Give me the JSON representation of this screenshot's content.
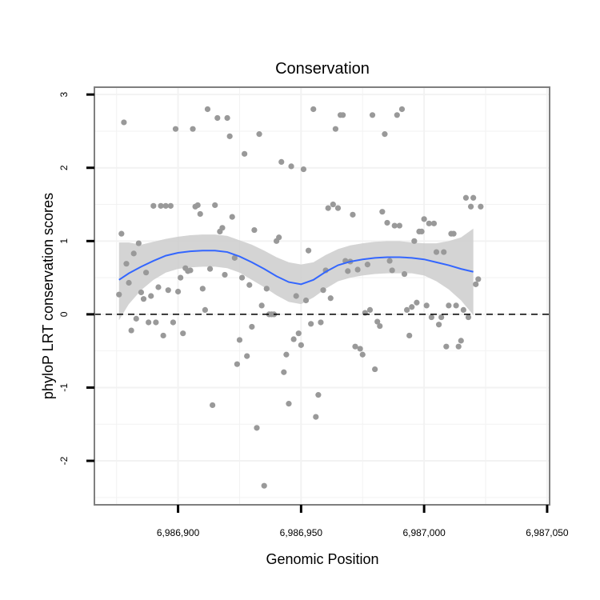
{
  "chart_data": {
    "type": "scatter",
    "title": "Conservation",
    "xlabel": "Genomic Position",
    "ylabel": "phyloP LRT conservation scores",
    "xlim": [
      6986866,
      6987051
    ],
    "ylim": [
      -2.6,
      3.1
    ],
    "x_ticks": [
      6986900,
      6986950,
      6987000,
      6987050
    ],
    "x_tick_labels": [
      "6,986,900",
      "6,986,950",
      "6,987,000",
      "6,987,050"
    ],
    "y_ticks": [
      -2,
      -1,
      0,
      1,
      2,
      3
    ],
    "y_tick_labels": [
      "-2",
      "-1",
      "0",
      "1",
      "2",
      "3"
    ],
    "grid": true,
    "reference_line": {
      "y": 0,
      "style": "dashed"
    },
    "colors": {
      "points": "#999999",
      "smooth_line": "#3366ff",
      "confidence_band": "#cccccc",
      "grid": "#f2f2f2",
      "panel_border": "#7f7f7f",
      "reference_line": "#000000"
    },
    "points": [
      [
        6986876,
        0.27
      ],
      [
        6986877,
        1.1
      ],
      [
        6986878,
        2.62
      ],
      [
        6986879,
        0.69
      ],
      [
        6986880,
        0.43
      ],
      [
        6986881,
        -0.22
      ],
      [
        6986882,
        0.83
      ],
      [
        6986883,
        -0.06
      ],
      [
        6986884,
        0.97
      ],
      [
        6986885,
        0.3
      ],
      [
        6986886,
        0.21
      ],
      [
        6986887,
        0.57
      ],
      [
        6986888,
        -0.11
      ],
      [
        6986889,
        0.25
      ],
      [
        6986890,
        1.48
      ],
      [
        6986891,
        -0.11
      ],
      [
        6986892,
        0.37
      ],
      [
        6986893,
        1.48
      ],
      [
        6986894,
        -0.29
      ],
      [
        6986895,
        1.48
      ],
      [
        6986896,
        0.33
      ],
      [
        6986897,
        1.48
      ],
      [
        6986898,
        -0.11
      ],
      [
        6986899,
        2.53
      ],
      [
        6986900,
        0.31
      ],
      [
        6986901,
        0.5
      ],
      [
        6986902,
        -0.26
      ],
      [
        6986903,
        0.63
      ],
      [
        6986904,
        0.59
      ],
      [
        6986905,
        0.6
      ],
      [
        6986906,
        2.53
      ],
      [
        6986907,
        1.47
      ],
      [
        6986908,
        1.49
      ],
      [
        6986909,
        1.37
      ],
      [
        6986910,
        0.35
      ],
      [
        6986911,
        0.06
      ],
      [
        6986912,
        2.8
      ],
      [
        6986913,
        0.62
      ],
      [
        6986914,
        -1.24
      ],
      [
        6986915,
        1.49
      ],
      [
        6986916,
        2.68
      ],
      [
        6986917,
        1.13
      ],
      [
        6986918,
        1.18
      ],
      [
        6986919,
        0.54
      ],
      [
        6986920,
        2.68
      ],
      [
        6986921,
        2.43
      ],
      [
        6986922,
        1.33
      ],
      [
        6986923,
        0.77
      ],
      [
        6986924,
        -0.68
      ],
      [
        6986925,
        -0.35
      ],
      [
        6986926,
        0.5
      ],
      [
        6986927,
        2.19
      ],
      [
        6986928,
        -0.57
      ],
      [
        6986929,
        0.4
      ],
      [
        6986930,
        -0.17
      ],
      [
        6986931,
        1.15
      ],
      [
        6986932,
        -1.55
      ],
      [
        6986933,
        2.46
      ],
      [
        6986934,
        0.12
      ],
      [
        6986935,
        -2.34
      ],
      [
        6986936,
        0.35
      ],
      [
        6986937,
        0.0
      ],
      [
        6986938,
        0.0
      ],
      [
        6986939,
        0.0
      ],
      [
        6986940,
        1.0
      ],
      [
        6986941,
        1.05
      ],
      [
        6986942,
        2.08
      ],
      [
        6986943,
        -0.79
      ],
      [
        6986944,
        -0.55
      ],
      [
        6986945,
        -1.22
      ],
      [
        6986946,
        2.02
      ],
      [
        6986947,
        -0.34
      ],
      [
        6986948,
        0.25
      ],
      [
        6986949,
        -0.26
      ],
      [
        6986950,
        -0.42
      ],
      [
        6986951,
        1.98
      ],
      [
        6986952,
        0.19
      ],
      [
        6986953,
        0.87
      ],
      [
        6986954,
        -0.13
      ],
      [
        6986955,
        2.8
      ],
      [
        6986956,
        -1.4
      ],
      [
        6986957,
        -1.1
      ],
      [
        6986958,
        -0.11
      ],
      [
        6986959,
        0.33
      ],
      [
        6986960,
        0.6
      ],
      [
        6986961,
        1.45
      ],
      [
        6986962,
        0.22
      ],
      [
        6986963,
        1.5
      ],
      [
        6986964,
        2.53
      ],
      [
        6986965,
        1.45
      ],
      [
        6986966,
        2.72
      ],
      [
        6986967,
        2.72
      ],
      [
        6986968,
        0.73
      ],
      [
        6986969,
        0.59
      ],
      [
        6986970,
        0.72
      ],
      [
        6986971,
        1.36
      ],
      [
        6986972,
        -0.44
      ],
      [
        6986973,
        0.61
      ],
      [
        6986974,
        -0.47
      ],
      [
        6986975,
        -0.55
      ],
      [
        6986976,
        0.02
      ],
      [
        6986977,
        0.68
      ],
      [
        6986978,
        0.06
      ],
      [
        6986979,
        2.72
      ],
      [
        6986980,
        -0.75
      ],
      [
        6986981,
        -0.1
      ],
      [
        6986982,
        -0.16
      ],
      [
        6986983,
        1.4
      ],
      [
        6986984,
        2.46
      ],
      [
        6986985,
        1.25
      ],
      [
        6986986,
        0.73
      ],
      [
        6986987,
        0.6
      ],
      [
        6986988,
        1.21
      ],
      [
        6986989,
        2.72
      ],
      [
        6986990,
        1.21
      ],
      [
        6986991,
        2.8
      ],
      [
        6986992,
        0.55
      ],
      [
        6986993,
        0.06
      ],
      [
        6986994,
        -0.29
      ],
      [
        6986995,
        0.1
      ],
      [
        6986996,
        1.0
      ],
      [
        6986997,
        0.16
      ],
      [
        6986998,
        1.13
      ],
      [
        6986999,
        1.13
      ],
      [
        6987000,
        1.3
      ],
      [
        6987001,
        0.12
      ],
      [
        6987002,
        1.24
      ],
      [
        6987003,
        -0.04
      ],
      [
        6987004,
        1.24
      ],
      [
        6987005,
        0.85
      ],
      [
        6987006,
        -0.14
      ],
      [
        6987007,
        -0.04
      ],
      [
        6987008,
        0.85
      ],
      [
        6987009,
        -0.44
      ],
      [
        6987010,
        0.12
      ],
      [
        6987011,
        1.1
      ],
      [
        6987012,
        1.1
      ],
      [
        6987013,
        0.12
      ],
      [
        6987014,
        -0.44
      ],
      [
        6987015,
        -0.36
      ],
      [
        6987016,
        0.06
      ],
      [
        6987017,
        1.59
      ],
      [
        6987018,
        -0.04
      ],
      [
        6987019,
        1.47
      ],
      [
        6987020,
        1.59
      ],
      [
        6987021,
        0.41
      ],
      [
        6987022,
        0.48
      ],
      [
        6987023,
        1.47
      ]
    ],
    "smooth": [
      [
        6986876,
        0.47
      ],
      [
        6986880,
        0.56
      ],
      [
        6986885,
        0.65
      ],
      [
        6986890,
        0.73
      ],
      [
        6986895,
        0.8
      ],
      [
        6986900,
        0.84
      ],
      [
        6986905,
        0.86
      ],
      [
        6986910,
        0.87
      ],
      [
        6986915,
        0.87
      ],
      [
        6986920,
        0.85
      ],
      [
        6986925,
        0.79
      ],
      [
        6986930,
        0.71
      ],
      [
        6986935,
        0.62
      ],
      [
        6986940,
        0.52
      ],
      [
        6986945,
        0.44
      ],
      [
        6986950,
        0.41
      ],
      [
        6986955,
        0.47
      ],
      [
        6986960,
        0.58
      ],
      [
        6986965,
        0.67
      ],
      [
        6986970,
        0.72
      ],
      [
        6986975,
        0.75
      ],
      [
        6986980,
        0.77
      ],
      [
        6986985,
        0.78
      ],
      [
        6986990,
        0.78
      ],
      [
        6986995,
        0.77
      ],
      [
        6987000,
        0.75
      ],
      [
        6987005,
        0.71
      ],
      [
        6987010,
        0.67
      ],
      [
        6987015,
        0.62
      ],
      [
        6987020,
        0.58
      ]
    ],
    "band_upper": [
      [
        6986876,
        0.98
      ],
      [
        6986880,
        0.98
      ],
      [
        6986885,
        0.95
      ],
      [
        6986890,
        0.99
      ],
      [
        6986895,
        1.03
      ],
      [
        6986900,
        1.06
      ],
      [
        6986905,
        1.08
      ],
      [
        6986910,
        1.09
      ],
      [
        6986915,
        1.09
      ],
      [
        6986920,
        1.07
      ],
      [
        6986925,
        1.01
      ],
      [
        6986930,
        0.95
      ],
      [
        6986935,
        0.87
      ],
      [
        6986940,
        0.78
      ],
      [
        6986945,
        0.71
      ],
      [
        6986950,
        0.68
      ],
      [
        6986955,
        0.71
      ],
      [
        6986960,
        0.81
      ],
      [
        6986965,
        0.89
      ],
      [
        6986970,
        0.94
      ],
      [
        6986975,
        0.97
      ],
      [
        6986980,
        0.99
      ],
      [
        6986985,
        1.0
      ],
      [
        6986990,
        1.0
      ],
      [
        6986995,
        0.98
      ],
      [
        6987000,
        0.97
      ],
      [
        6987005,
        0.97
      ],
      [
        6987010,
        1.0
      ],
      [
        6987015,
        1.05
      ],
      [
        6987020,
        1.17
      ]
    ],
    "band_lower": [
      [
        6986876,
        -0.08
      ],
      [
        6986880,
        0.14
      ],
      [
        6986885,
        0.33
      ],
      [
        6986890,
        0.47
      ],
      [
        6986895,
        0.57
      ],
      [
        6986900,
        0.62
      ],
      [
        6986905,
        0.64
      ],
      [
        6986910,
        0.65
      ],
      [
        6986915,
        0.65
      ],
      [
        6986920,
        0.63
      ],
      [
        6986925,
        0.57
      ],
      [
        6986930,
        0.47
      ],
      [
        6986935,
        0.37
      ],
      [
        6986940,
        0.26
      ],
      [
        6986945,
        0.17
      ],
      [
        6986950,
        0.14
      ],
      [
        6986955,
        0.23
      ],
      [
        6986960,
        0.35
      ],
      [
        6986965,
        0.45
      ],
      [
        6986970,
        0.5
      ],
      [
        6986975,
        0.53
      ],
      [
        6986980,
        0.55
      ],
      [
        6986985,
        0.56
      ],
      [
        6986990,
        0.56
      ],
      [
        6986995,
        0.56
      ],
      [
        6987000,
        0.53
      ],
      [
        6987005,
        0.45
      ],
      [
        6987010,
        0.34
      ],
      [
        6987015,
        0.19
      ],
      [
        6987020,
        -0.01
      ]
    ]
  }
}
